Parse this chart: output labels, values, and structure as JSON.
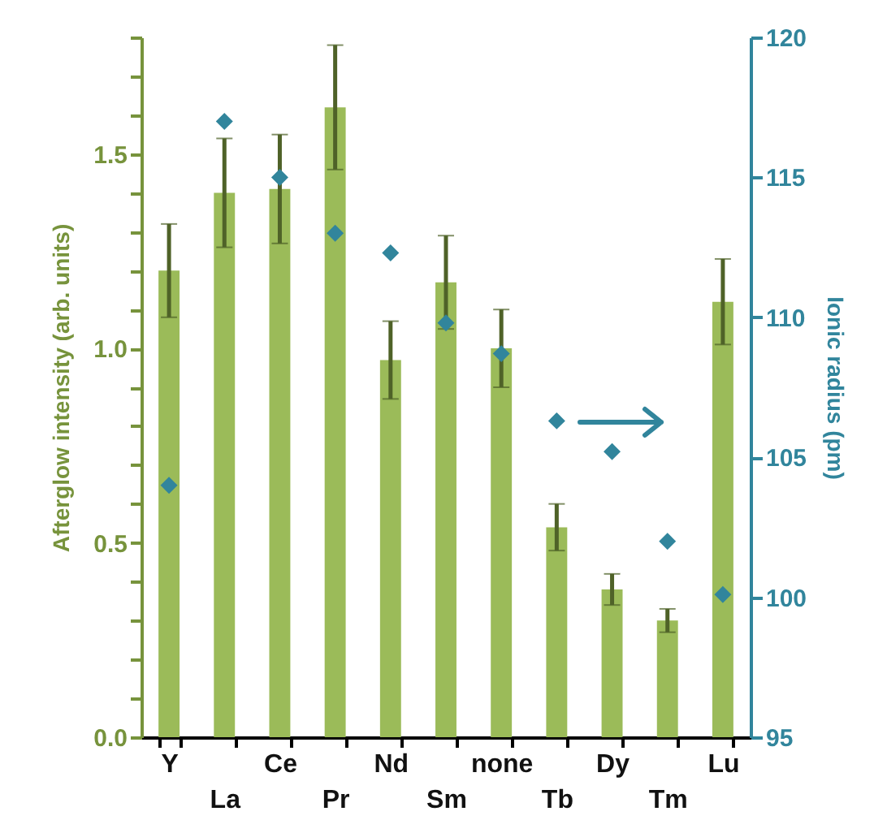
{
  "chart_data": {
    "type": "bar",
    "ylabel": "Afterglow intensity (arb. units)",
    "y2label": "Ionic radius (pm)",
    "categories": [
      "Y",
      "La",
      "Ce",
      "Pr",
      "Nd",
      "Sm",
      "none",
      "Tb",
      "Dy",
      "Tm",
      "Lu"
    ],
    "series": [
      {
        "type": "bar",
        "color": "#9bbb59",
        "values": [
          1.2,
          1.4,
          1.41,
          1.62,
          0.97,
          1.17,
          1.0,
          0.54,
          0.38,
          0.3,
          1.12
        ],
        "errors": [
          0.12,
          0.14,
          0.14,
          0.16,
          0.1,
          0.12,
          0.1,
          0.06,
          0.04,
          0.03,
          0.11
        ]
      },
      {
        "type": "scatter",
        "axis": "y2",
        "marker": "diamond",
        "color": "#31859c",
        "values": [
          104,
          117,
          115,
          113,
          112.3,
          109.8,
          108.7,
          106.3,
          105.2,
          102,
          100.1
        ]
      }
    ],
    "ylim": [
      0,
      1.8
    ],
    "yticks": [
      {
        "value": 0,
        "label": "0.0"
      },
      {
        "value": 0.1,
        "label": null
      },
      {
        "value": 0.2,
        "label": null
      },
      {
        "value": 0.3,
        "label": null
      },
      {
        "value": 0.4,
        "label": null
      },
      0.5,
      {
        "value": 0.6,
        "label": null
      },
      {
        "value": 0.7,
        "label": null
      },
      {
        "value": 0.8,
        "label": null
      },
      {
        "value": 0.9,
        "label": null
      },
      {
        "value": 1,
        "label": "1.0"
      },
      {
        "value": 1.1,
        "label": null
      },
      {
        "value": 1.2,
        "label": null
      },
      {
        "value": 1.3,
        "label": null
      },
      {
        "value": 1.4,
        "label": null
      },
      1.5,
      {
        "value": 1.6,
        "label": null
      },
      {
        "value": 1.7,
        "label": null
      },
      {
        "value": 1.8,
        "label": null
      }
    ],
    "y2lim": [
      95,
      120
    ],
    "y2ticks": [
      95,
      100,
      105,
      110,
      115,
      120
    ],
    "grid": false
  }
}
